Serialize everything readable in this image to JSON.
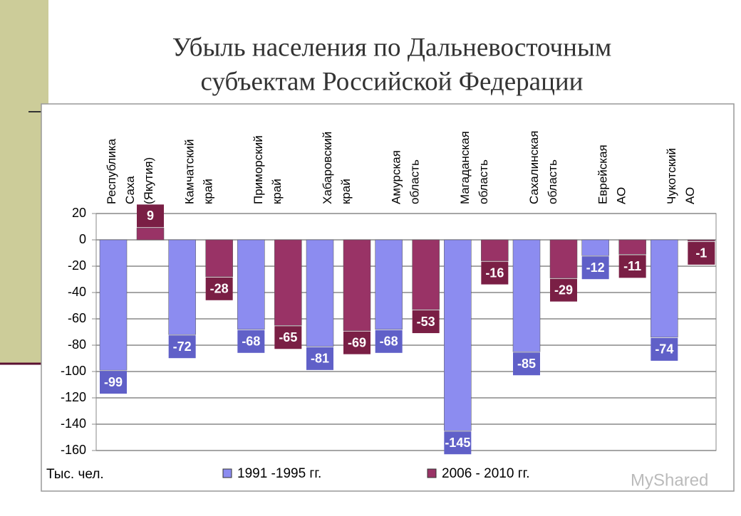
{
  "chart_data": {
    "type": "bar",
    "title": [
      "Убыль населения по Дальневосточным",
      "субъектам Российской Федерации"
    ],
    "categories": [
      [
        "Республика",
        "Саха",
        "(Якутия)"
      ],
      [
        "Камчатский",
        "край"
      ],
      [
        "Приморский",
        "край"
      ],
      [
        "Хабаровский",
        "край"
      ],
      [
        "Амурская",
        "область"
      ],
      [
        "Магаданская",
        "область"
      ],
      [
        "Сахалинская",
        "область"
      ],
      [
        "Еврейская",
        "АО"
      ],
      [
        "Чукотский",
        "АО"
      ]
    ],
    "series": [
      {
        "name": "1991 -1995 гг.",
        "color": "#8c8cf0",
        "label_color": "#6060c8",
        "values": [
          -99,
          -72,
          -68,
          -81,
          -68,
          -145,
          -85,
          -12,
          -74
        ]
      },
      {
        "name": "2006 - 2010 гг.",
        "color": "#993366",
        "label_color": "#7a1f45",
        "values": [
          9,
          -28,
          -65,
          -69,
          -53,
          -16,
          -29,
          -11,
          -1
        ]
      }
    ],
    "ylim": [
      -160,
      20
    ],
    "yticks": [
      20,
      0,
      -20,
      -40,
      -60,
      -80,
      -100,
      -120,
      -140,
      -160
    ],
    "grid": true,
    "y_unit": "Тыс. чел.",
    "watermark": "MyShared"
  }
}
